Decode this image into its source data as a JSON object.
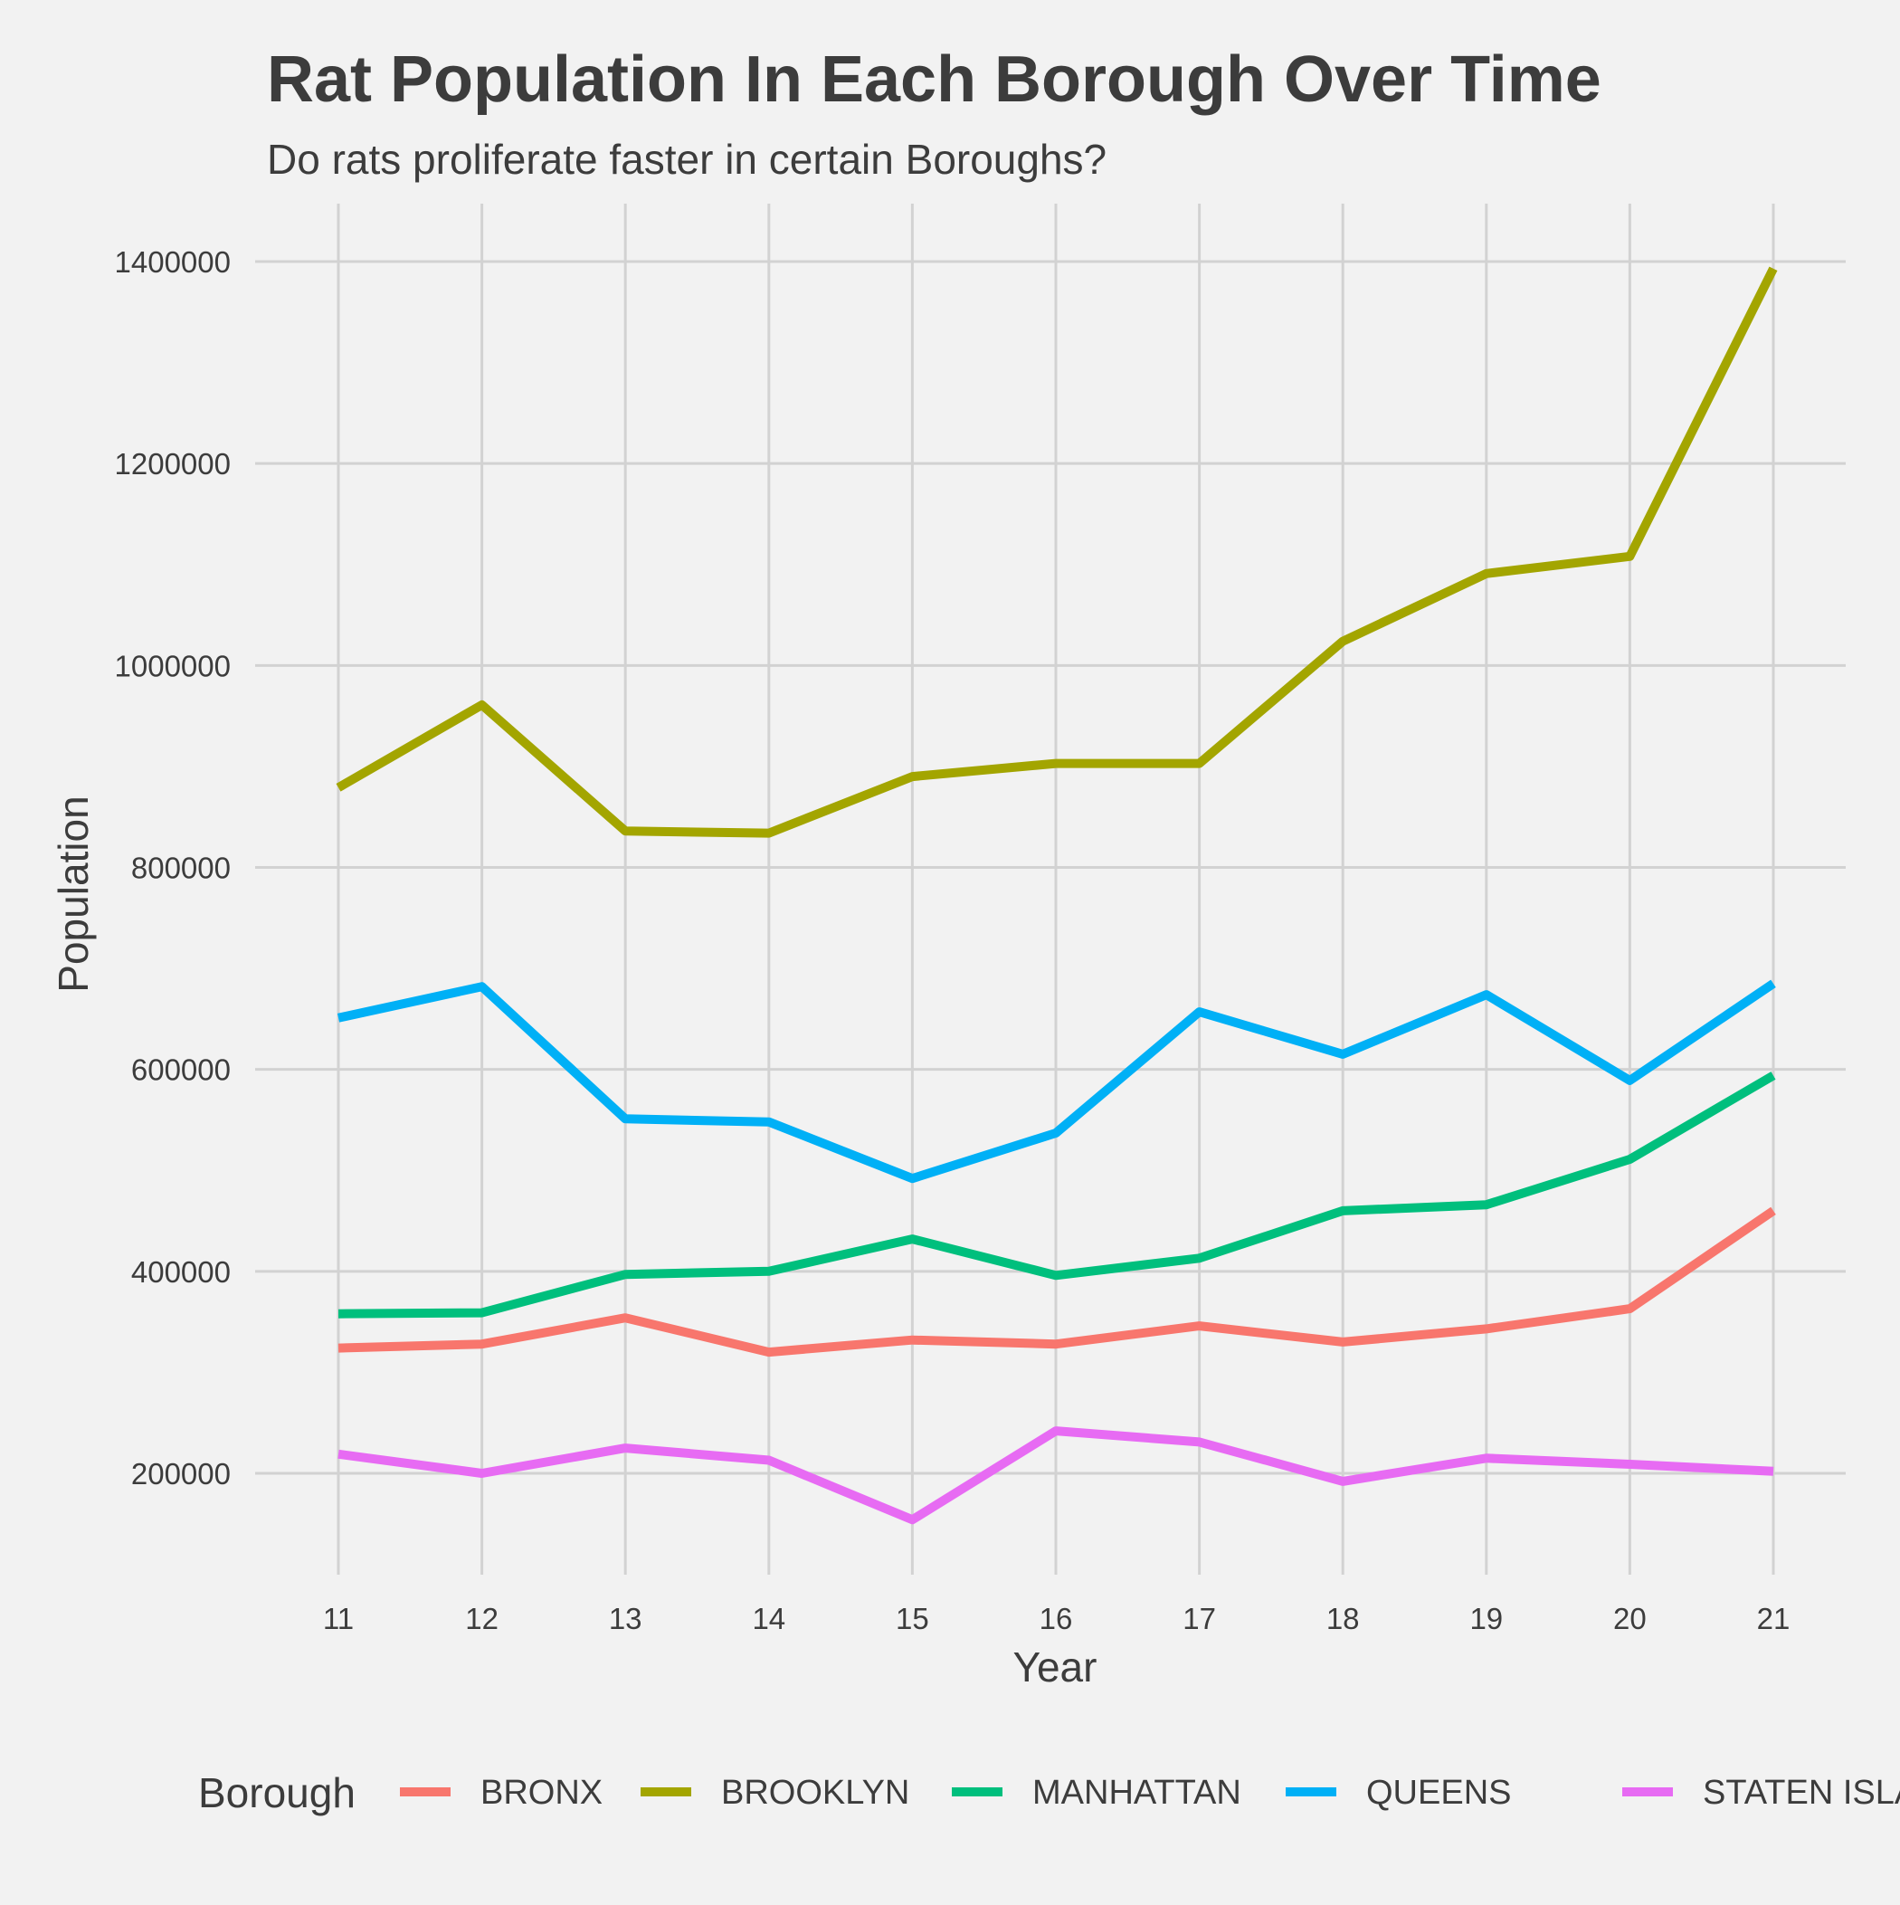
{
  "chart_data": {
    "type": "line",
    "title": "Rat Population In Each Borough Over Time",
    "subtitle": "Do rats proliferate faster in certain Boroughs?",
    "xlabel": "Year",
    "ylabel": "Population",
    "x": [
      11,
      12,
      13,
      14,
      15,
      16,
      17,
      18,
      19,
      20,
      21
    ],
    "x_tick_labels": [
      "11",
      "12",
      "13",
      "14",
      "15",
      "16",
      "17",
      "18",
      "19",
      "20",
      "21"
    ],
    "y_ticks": [
      200000,
      400000,
      600000,
      800000,
      1000000,
      1200000,
      1400000
    ],
    "y_tick_labels": [
      "200000",
      "400000",
      "600000",
      "800000",
      "1000000",
      "1200000",
      "1400000"
    ],
    "xlim": [
      10.5,
      21.5
    ],
    "ylim": [
      100000,
      1450000
    ],
    "grid": true,
    "legend": {
      "title": "Borough",
      "placement": "bottom"
    },
    "series": [
      {
        "name": "BRONX",
        "color": "#F8766D",
        "values": [
          324000,
          328000,
          354000,
          320000,
          332000,
          328000,
          346000,
          330000,
          343000,
          363000,
          460000
        ]
      },
      {
        "name": "BROOKLYN",
        "color": "#A3A500",
        "values": [
          879000,
          961000,
          836000,
          834000,
          890000,
          903000,
          903000,
          1024000,
          1091000,
          1108000,
          1393000
        ]
      },
      {
        "name": "MANHATTAN",
        "color": "#00BF7D",
        "values": [
          358000,
          359000,
          397000,
          400000,
          432000,
          396000,
          413000,
          460000,
          466000,
          511000,
          594000
        ]
      },
      {
        "name": "QUEENS",
        "color": "#00B0F6",
        "values": [
          651000,
          682000,
          551000,
          548000,
          492000,
          537000,
          657000,
          615000,
          674000,
          589000,
          685000
        ]
      },
      {
        "name": "STATEN ISLAND",
        "color": "#E76BF3",
        "values": [
          219000,
          200000,
          225000,
          213000,
          154000,
          242000,
          231000,
          192000,
          215000,
          209000,
          202000
        ]
      }
    ]
  }
}
